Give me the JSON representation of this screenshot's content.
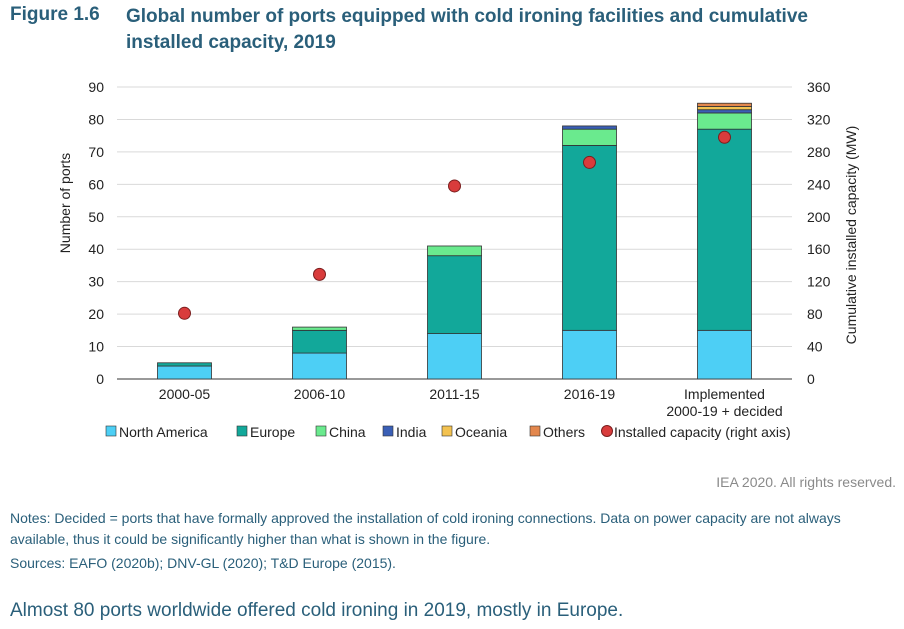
{
  "figure": {
    "number": "Figure 1.6",
    "title": "Global number of ports equipped with cold ironing facilities and cumulative installed capacity, 2019"
  },
  "chart_data": {
    "type": "bar",
    "stacked": true,
    "categories": [
      "2000-05",
      "2006-10",
      "2011-15",
      "2016-19",
      "Implemented\n2000-19 + decided"
    ],
    "series": [
      {
        "name": "North America",
        "color": "#4dcff5",
        "values": [
          4,
          8,
          14,
          15,
          15
        ]
      },
      {
        "name": "Europe",
        "color": "#12a89a",
        "values": [
          1,
          7,
          24,
          57,
          62
        ]
      },
      {
        "name": "China",
        "color": "#6aea8e",
        "values": [
          0,
          1,
          3,
          5,
          5
        ]
      },
      {
        "name": "India",
        "color": "#3a5fb6",
        "values": [
          0,
          0,
          0,
          1,
          1
        ]
      },
      {
        "name": "Oceania",
        "color": "#f3c250",
        "values": [
          0,
          0,
          0,
          0,
          1
        ]
      },
      {
        "name": "Others",
        "color": "#e3874d",
        "values": [
          0,
          0,
          0,
          0,
          1
        ]
      }
    ],
    "secondary_series": {
      "name": "Installed capacity (right axis)",
      "type": "scatter",
      "color": "#d93c3c",
      "values": [
        81,
        129,
        238,
        267,
        298
      ]
    },
    "ylabel": "Number of ports",
    "y2label": "Cumulative installed capacity (MW)",
    "ylim": [
      0,
      90
    ],
    "yticks": [
      "0",
      "10",
      "20",
      "30",
      "40",
      "50",
      "60",
      "70",
      "80",
      "90"
    ],
    "y2lim": [
      0,
      360
    ],
    "y2ticks": [
      "0",
      "40",
      "80",
      "120",
      "160",
      "200",
      "240",
      "280",
      "320",
      "360"
    ],
    "grid": true,
    "legend_position": "bottom"
  },
  "copyright": "IEA 2020. All rights reserved.",
  "notes": "Notes: Decided = ports that have formally approved the installation of cold ironing connections. Data on power capacity are not always available, thus it could be significantly higher than what is shown in the figure.",
  "sources": "Sources: EAFO (2020b); DNV-GL (2020); T&D Europe (2015).",
  "summary": "Almost 80 ports worldwide offered cold ironing in 2019, mostly in Europe."
}
